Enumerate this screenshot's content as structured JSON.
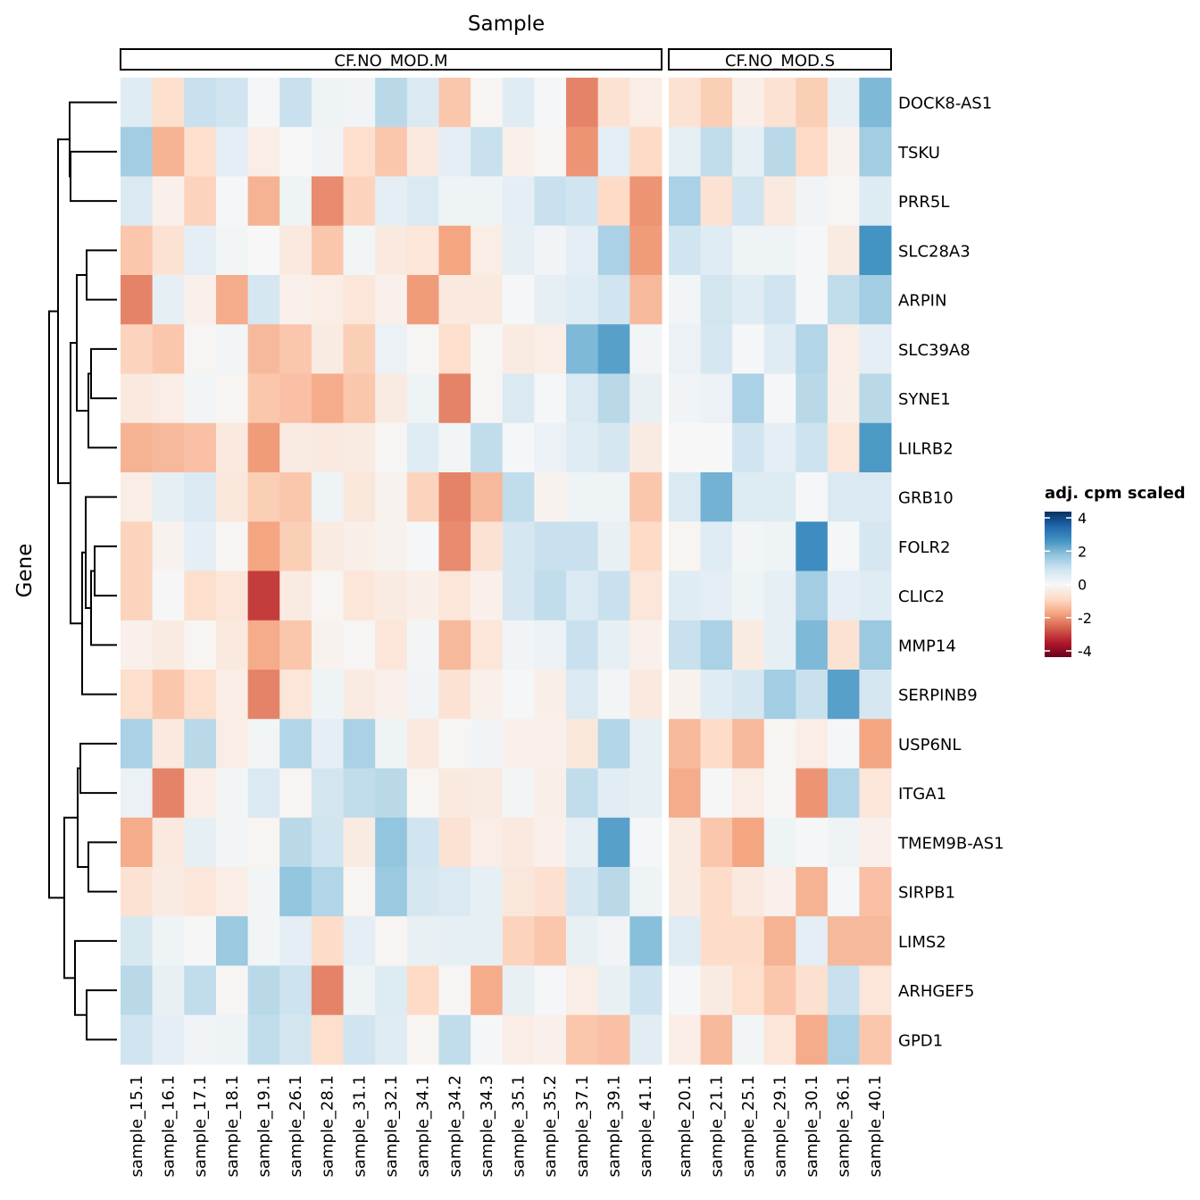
{
  "chart_data": {
    "type": "heatmap",
    "xlabel": "Sample",
    "ylabel": "Gene",
    "facets": [
      {
        "label": "CF.NO_MOD.M",
        "columns": [
          "sample_15.1",
          "sample_16.1",
          "sample_17.1",
          "sample_18.1",
          "sample_19.1",
          "sample_26.1",
          "sample_28.1",
          "sample_31.1",
          "sample_32.1",
          "sample_34.1",
          "sample_34.2",
          "sample_34.3",
          "sample_35.1",
          "sample_35.2",
          "sample_37.1",
          "sample_39.1",
          "sample_41.1"
        ]
      },
      {
        "label": "CF.NO_MOD.S",
        "columns": [
          "sample_20.1",
          "sample_21.1",
          "sample_25.1",
          "sample_29.1",
          "sample_30.1",
          "sample_36.1",
          "sample_40.1"
        ]
      }
    ],
    "rows": [
      "DOCK8-AS1",
      "TSKU",
      "PRR5L",
      "SLC28A3",
      "ARPIN",
      "SLC39A8",
      "SYNE1",
      "LILRB2",
      "GRB10",
      "FOLR2",
      "CLIC2",
      "MMP14",
      "SERPINB9",
      "USP6NL",
      "ITGA1",
      "TMEM9B-AS1",
      "SIRPB1",
      "LIMS2",
      "ARHGEF5",
      "GPD1"
    ],
    "values": [
      [
        0.5,
        -0.7,
        0.9,
        0.8,
        0.05,
        0.9,
        0.2,
        0.15,
        1.1,
        0.6,
        -1.1,
        -0.1,
        0.5,
        0.05,
        -2.0,
        -0.6,
        -0.3,
        -0.6,
        -1.0,
        -0.25,
        -0.6,
        -1.0,
        0.35,
        1.8
      ],
      [
        1.4,
        -1.4,
        -0.7,
        0.4,
        -0.3,
        0.0,
        0.15,
        -0.7,
        -1.1,
        -0.4,
        0.4,
        0.9,
        -0.2,
        -0.1,
        -1.8,
        0.4,
        -0.8,
        0.35,
        1.0,
        0.35,
        1.1,
        -0.8,
        -0.15,
        1.4
      ],
      [
        0.6,
        -0.2,
        -0.9,
        0.05,
        -1.4,
        0.2,
        -1.9,
        -0.9,
        0.4,
        0.6,
        0.2,
        0.2,
        0.4,
        0.9,
        0.8,
        -0.8,
        -1.8,
        1.3,
        -0.6,
        0.8,
        -0.4,
        0.15,
        -0.05,
        0.55
      ],
      [
        -1.1,
        -0.6,
        0.4,
        0.1,
        0.0,
        -0.4,
        -1.1,
        0.1,
        -0.4,
        -0.5,
        -1.6,
        -0.3,
        0.35,
        0.15,
        0.4,
        1.3,
        -1.7,
        0.8,
        0.5,
        0.2,
        0.2,
        0.05,
        -0.35,
        2.4
      ],
      [
        -2.0,
        0.35,
        -0.2,
        -1.5,
        0.7,
        -0.2,
        -0.3,
        -0.5,
        -0.2,
        -1.7,
        -0.4,
        -0.4,
        0.05,
        0.35,
        0.5,
        0.8,
        -1.3,
        0.1,
        0.75,
        0.5,
        0.8,
        0.05,
        1.0,
        1.4
      ],
      [
        -0.9,
        -1.1,
        -0.05,
        0.1,
        -1.3,
        -1.1,
        -0.35,
        -1.0,
        0.25,
        -0.05,
        -0.7,
        -0.05,
        -0.35,
        -0.3,
        1.8,
        2.2,
        0.1,
        0.25,
        0.7,
        0.05,
        0.5,
        1.2,
        -0.3,
        0.4
      ],
      [
        -0.4,
        -0.3,
        0.1,
        -0.1,
        -1.1,
        -1.2,
        -1.5,
        -1.1,
        -0.35,
        0.2,
        -2.0,
        -0.05,
        0.6,
        0.05,
        0.6,
        1.1,
        0.3,
        0.15,
        0.25,
        1.3,
        0.05,
        1.1,
        -0.25,
        1.1
      ],
      [
        -1.4,
        -1.3,
        -1.2,
        -0.4,
        -1.7,
        -0.35,
        -0.4,
        -0.35,
        -0.05,
        0.5,
        0.1,
        1.0,
        0.05,
        0.25,
        0.5,
        0.7,
        -0.35,
        0.0,
        0.0,
        0.8,
        0.4,
        0.85,
        -0.5,
        2.3
      ],
      [
        -0.3,
        0.35,
        0.6,
        -0.45,
        -1.0,
        -1.1,
        0.2,
        -0.45,
        -0.15,
        -0.9,
        -2.0,
        -1.3,
        1.0,
        -0.15,
        0.2,
        0.2,
        -1.1,
        0.6,
        1.9,
        0.55,
        0.55,
        0.05,
        0.6,
        0.6
      ],
      [
        -0.9,
        -0.15,
        0.4,
        -0.05,
        -1.6,
        -1.0,
        -0.35,
        -0.25,
        -0.15,
        0.05,
        -1.9,
        -0.6,
        0.7,
        0.9,
        0.9,
        0.3,
        -0.8,
        -0.1,
        0.5,
        0.1,
        0.2,
        2.5,
        0.05,
        0.7
      ],
      [
        -0.9,
        0.03,
        -0.7,
        -0.5,
        -2.8,
        -0.35,
        -0.1,
        -0.5,
        -0.35,
        -0.25,
        -0.5,
        -0.2,
        0.7,
        1.0,
        0.6,
        0.9,
        -0.5,
        0.5,
        0.4,
        0.2,
        0.35,
        1.4,
        0.4,
        0.5
      ],
      [
        -0.2,
        -0.35,
        -0.1,
        -0.4,
        -1.5,
        -1.1,
        -0.15,
        -0.05,
        -0.5,
        0.1,
        -1.3,
        -0.5,
        0.15,
        0.25,
        0.9,
        0.35,
        -0.2,
        0.9,
        1.3,
        -0.35,
        0.35,
        1.8,
        -0.6,
        1.5
      ],
      [
        -0.7,
        -1.1,
        -0.7,
        -0.3,
        -2.0,
        -0.5,
        0.2,
        -0.35,
        -0.2,
        0.15,
        -0.6,
        -0.2,
        0.05,
        -0.25,
        0.6,
        0.1,
        -0.4,
        -0.15,
        0.5,
        0.7,
        1.4,
        0.9,
        2.2,
        0.7
      ],
      [
        1.3,
        -0.4,
        1.1,
        -0.3,
        0.1,
        1.2,
        0.4,
        1.3,
        0.2,
        -0.4,
        -0.05,
        0.15,
        -0.2,
        -0.2,
        -0.45,
        1.2,
        0.35,
        -1.3,
        -0.75,
        -1.3,
        -0.1,
        -0.3,
        0.05,
        -1.6
      ],
      [
        0.25,
        -2.0,
        -0.3,
        0.1,
        0.6,
        -0.1,
        0.75,
        1.0,
        1.1,
        -0.1,
        -0.4,
        -0.35,
        0.1,
        -0.25,
        1.0,
        0.45,
        0.35,
        -1.5,
        0.03,
        -0.3,
        -0.05,
        -1.8,
        1.2,
        -0.5
      ],
      [
        -1.5,
        -0.4,
        0.35,
        0.1,
        -0.1,
        1.1,
        0.8,
        -0.35,
        1.6,
        0.8,
        -0.6,
        -0.3,
        -0.4,
        -0.2,
        0.35,
        2.2,
        0.05,
        -0.35,
        -1.1,
        -1.6,
        0.2,
        0.05,
        0.2,
        -0.2
      ],
      [
        -0.6,
        -0.35,
        -0.5,
        -0.3,
        0.1,
        1.6,
        1.2,
        -0.1,
        1.5,
        0.7,
        0.6,
        0.35,
        -0.45,
        -0.65,
        0.7,
        1.1,
        0.2,
        -0.35,
        -0.75,
        -0.4,
        -0.2,
        -1.4,
        0.05,
        -1.2
      ],
      [
        0.65,
        0.2,
        0.03,
        1.5,
        0.1,
        0.4,
        -0.75,
        0.4,
        -0.1,
        0.3,
        0.35,
        0.35,
        -0.9,
        -1.1,
        0.3,
        0.15,
        1.7,
        0.5,
        -0.75,
        -0.75,
        -1.4,
        0.4,
        -1.3,
        -1.3
      ],
      [
        1.1,
        0.3,
        1.0,
        -0.05,
        1.1,
        0.85,
        -2.0,
        0.2,
        0.55,
        -0.8,
        -0.05,
        -1.5,
        0.3,
        0.05,
        -0.3,
        0.3,
        0.85,
        0.05,
        -0.35,
        -0.7,
        -1.1,
        -0.65,
        0.9,
        -0.5
      ],
      [
        0.8,
        0.4,
        0.15,
        0.2,
        1.0,
        0.75,
        -0.7,
        0.8,
        0.5,
        -0.1,
        1.0,
        0.05,
        -0.3,
        -0.2,
        -1.1,
        -1.2,
        0.45,
        -0.3,
        -1.3,
        0.1,
        -0.5,
        -1.5,
        1.3,
        -1.1
      ]
    ],
    "legend": {
      "title": "adj. cpm scaled",
      "ticks": [
        4,
        2,
        0,
        -2,
        -4
      ],
      "range": [
        -4,
        4
      ],
      "palette": [
        "#67001f",
        "#b2182b",
        "#d6604d",
        "#f4a582",
        "#fddbc7",
        "#f7f7f7",
        "#d1e5f0",
        "#92c5de",
        "#4393c3",
        "#2166ac",
        "#053061"
      ],
      "placement": "right"
    },
    "row_dendrogram": true
  }
}
